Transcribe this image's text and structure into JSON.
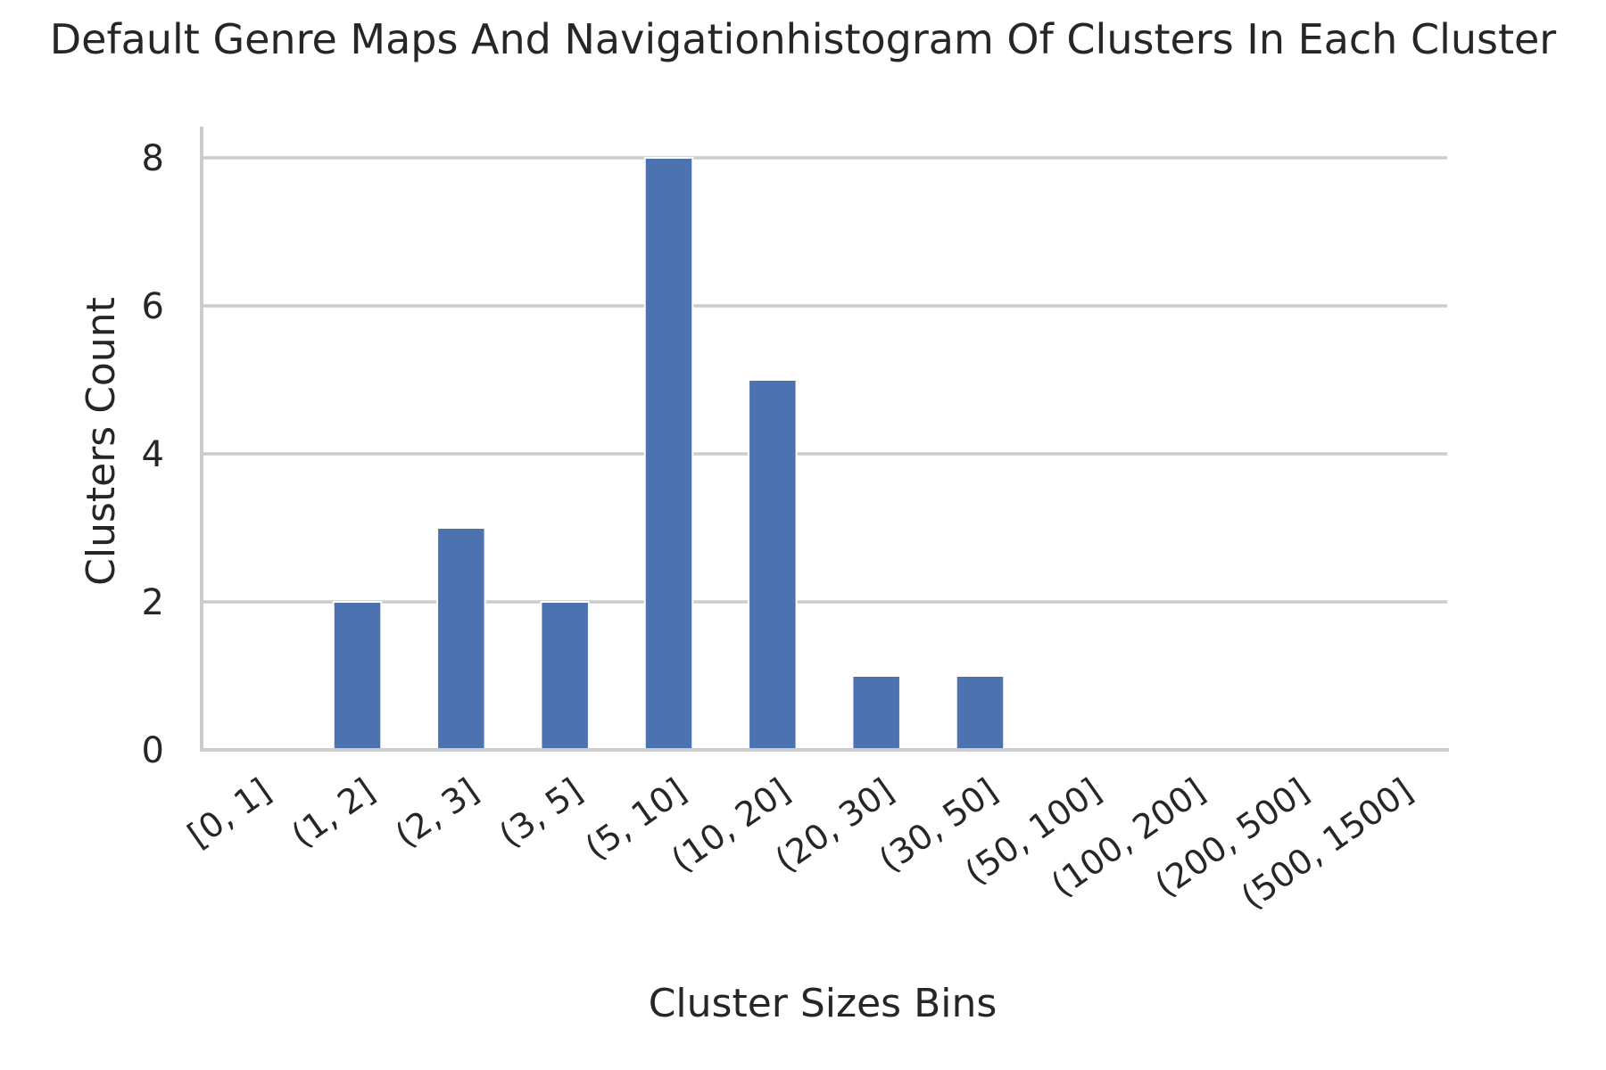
{
  "chart_data": {
    "type": "bar",
    "title": "Default Genre Maps And Navigationhistogram Of Clusters In Each Cluster",
    "xlabel": "Cluster Sizes Bins",
    "ylabel": "Clusters Count",
    "categories": [
      "[0, 1]",
      "(1, 2]",
      "(2, 3]",
      "(3, 5]",
      "(5, 10]",
      "(10, 20]",
      "(20, 30]",
      "(30, 50]",
      "(50, 100]",
      "(100, 200]",
      "(200, 500]",
      "(500, 1500]"
    ],
    "values": [
      0,
      2,
      3,
      2,
      8,
      5,
      1,
      1,
      0,
      0,
      0,
      0
    ],
    "ylim": [
      0,
      8.4
    ],
    "yticks": [
      0,
      2,
      4,
      6,
      8
    ],
    "grid": true,
    "bar_color": "#4c72b0",
    "grid_color": "#cccccc"
  }
}
